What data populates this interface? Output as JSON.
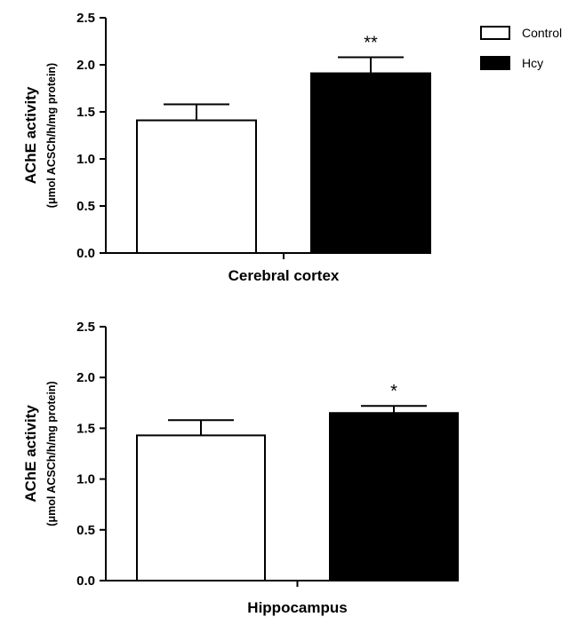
{
  "chart_data": [
    {
      "type": "bar",
      "categories": [
        "Control",
        "Hcy"
      ],
      "values": [
        1.41,
        1.91
      ],
      "errors": [
        0.17,
        0.17
      ],
      "significance": [
        "",
        "**"
      ],
      "xlabel": "Cerebral cortex",
      "ylabel": "AChE activity",
      "ylabel_sub": "(μmol ACSCh/h/mg protein)",
      "ylim": [
        0,
        2.5
      ],
      "yticks": [
        "0.0",
        "0.5",
        "1.0",
        "1.5",
        "2.0",
        "2.5"
      ],
      "legend": {
        "placement": "top-right",
        "entries": [
          {
            "label": "Control",
            "color": "#ffffff"
          },
          {
            "label": "Hcy",
            "color": "#000000"
          }
        ]
      },
      "grid": false
    },
    {
      "type": "bar",
      "categories": [
        "Control",
        "Hcy"
      ],
      "values": [
        1.43,
        1.65
      ],
      "errors": [
        0.15,
        0.07
      ],
      "significance": [
        "",
        "*"
      ],
      "xlabel": "Hippocampus",
      "ylabel": "AChE activity",
      "ylabel_sub": "(μmol ACSCh/h/mg protein)",
      "ylim": [
        0,
        2.5
      ],
      "yticks": [
        "0.0",
        "0.5",
        "1.0",
        "1.5",
        "2.0",
        "2.5"
      ],
      "grid": false
    }
  ],
  "colors": {
    "control": "#ffffff",
    "hcy": "#000000",
    "axis": "#000000"
  }
}
